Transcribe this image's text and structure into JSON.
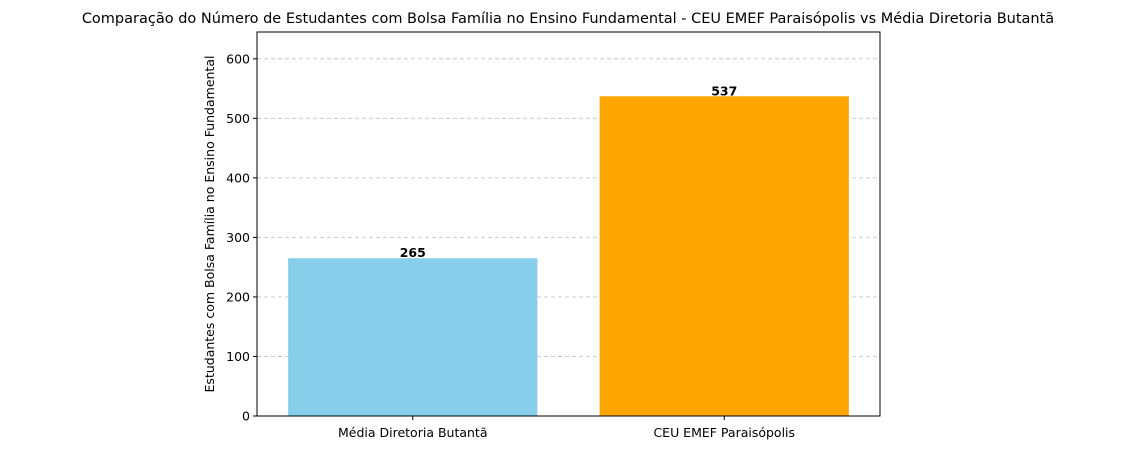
{
  "chart_data": {
    "type": "bar",
    "title": "Comparação do Número de Estudantes com Bolsa Família no Ensino Fundamental - CEU EMEF Paraisópolis vs Média Diretoria Butantã",
    "xlabel": "",
    "ylabel": "Estudantes com Bolsa Família no Ensino Fundamental",
    "categories": [
      "Média Diretoria Butantã",
      "CEU EMEF Paraisópolis"
    ],
    "values": [
      265,
      537
    ],
    "data_labels": [
      "265",
      "537"
    ],
    "colors": [
      "#87ceeb",
      "#ffa500"
    ],
    "ylim": [
      0,
      645
    ],
    "yticks": [
      0,
      100,
      200,
      300,
      400,
      500,
      600
    ],
    "grid": "y-dashed"
  }
}
